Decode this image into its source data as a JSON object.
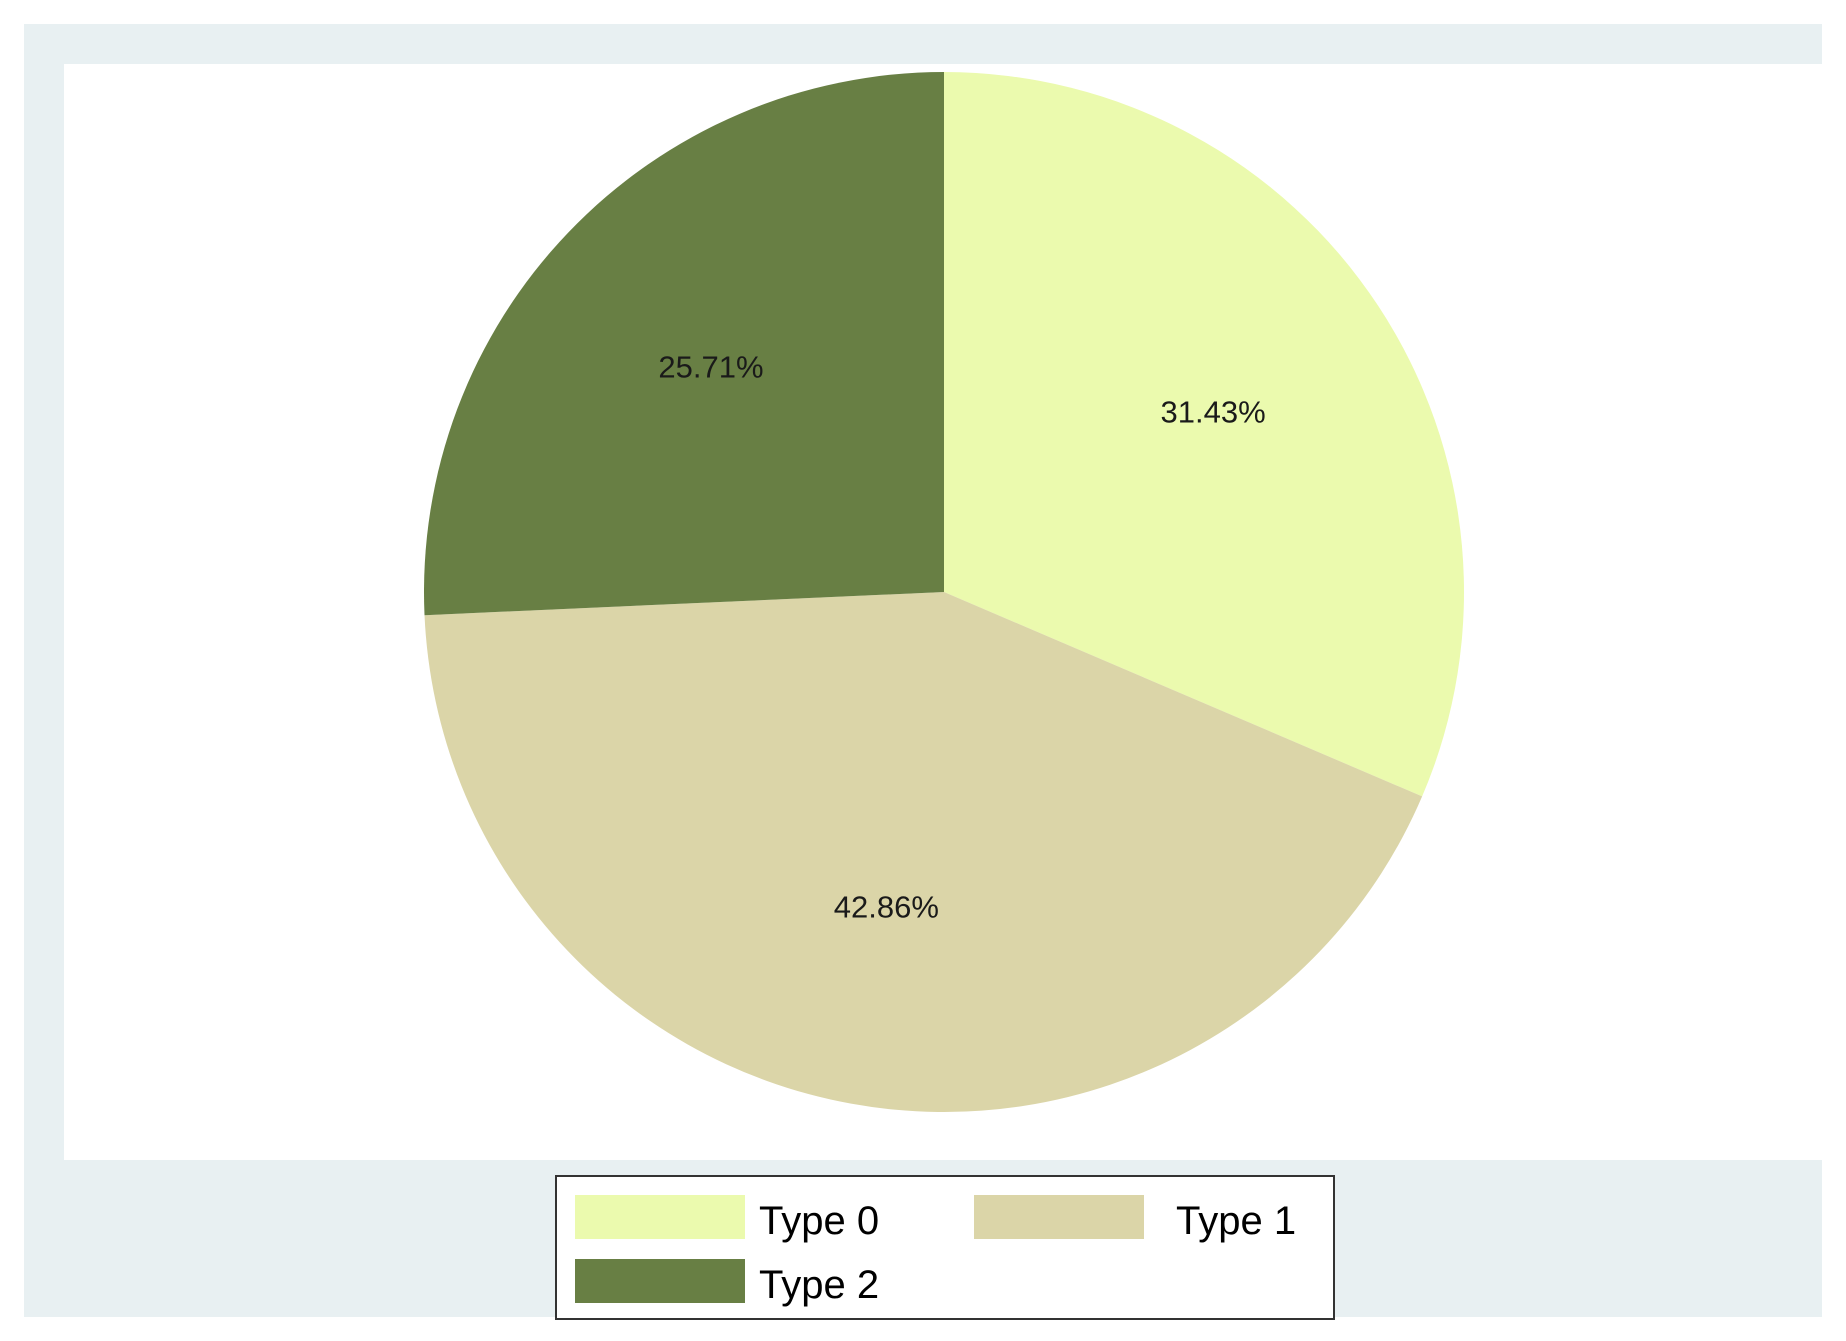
{
  "chart_data": {
    "type": "pie",
    "categories": [
      "Type 0",
      "Type 1",
      "Type 2"
    ],
    "values": [
      31.43,
      42.86,
      25.71
    ],
    "value_labels": [
      "31.43%",
      "42.86%",
      "25.71%"
    ],
    "colors": [
      "#ebfaae",
      "#dbd5a8",
      "#687f44"
    ],
    "start_angle_deg": 0,
    "direction": "clockwise",
    "legend_position": "bottom",
    "title": ""
  },
  "legend": {
    "items": [
      {
        "label": "Type 0",
        "color": "#ebfaae"
      },
      {
        "label": "Type 1",
        "color": "#dbd5a8"
      },
      {
        "label": "Type 2",
        "color": "#687f44"
      }
    ]
  },
  "colors": {
    "outer_background": "#e8f0f2",
    "plot_background": "#ffffff",
    "legend_border": "#333333"
  }
}
